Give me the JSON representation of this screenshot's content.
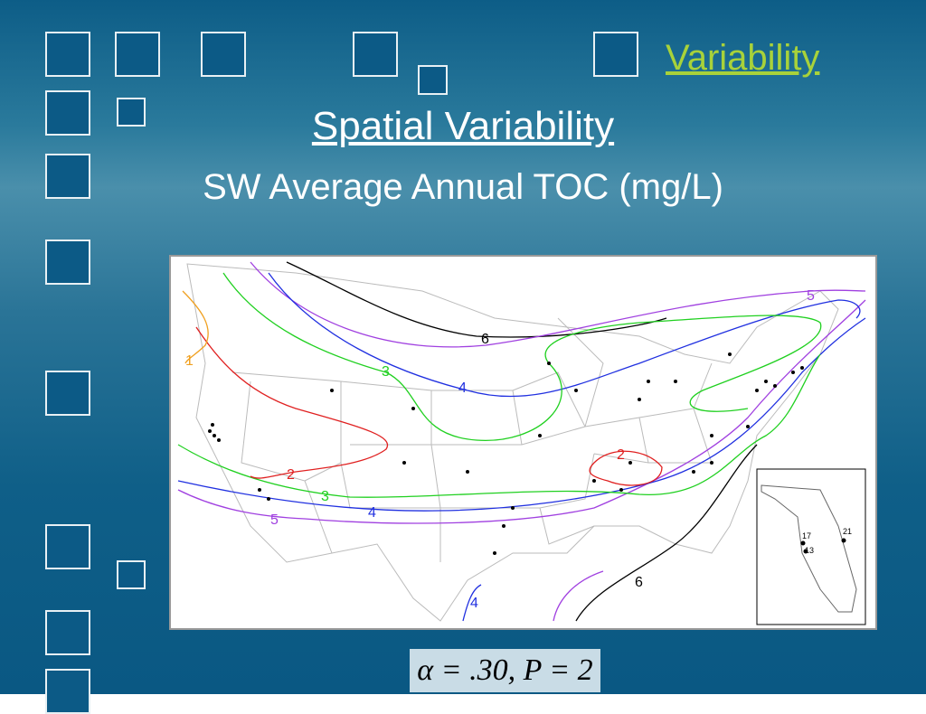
{
  "header": {
    "link": "Variability",
    "title": "Spatial Variability",
    "subtitle": "SW Average Annual TOC (mg/L)"
  },
  "map": {
    "contour_labels": [
      "6",
      "5",
      "4",
      "3",
      "2",
      "1",
      "2",
      "3",
      "4",
      "5",
      "4",
      "6"
    ],
    "inset_labels": [
      "17",
      "13",
      "21"
    ]
  },
  "formula": "α = .30, P = 2"
}
